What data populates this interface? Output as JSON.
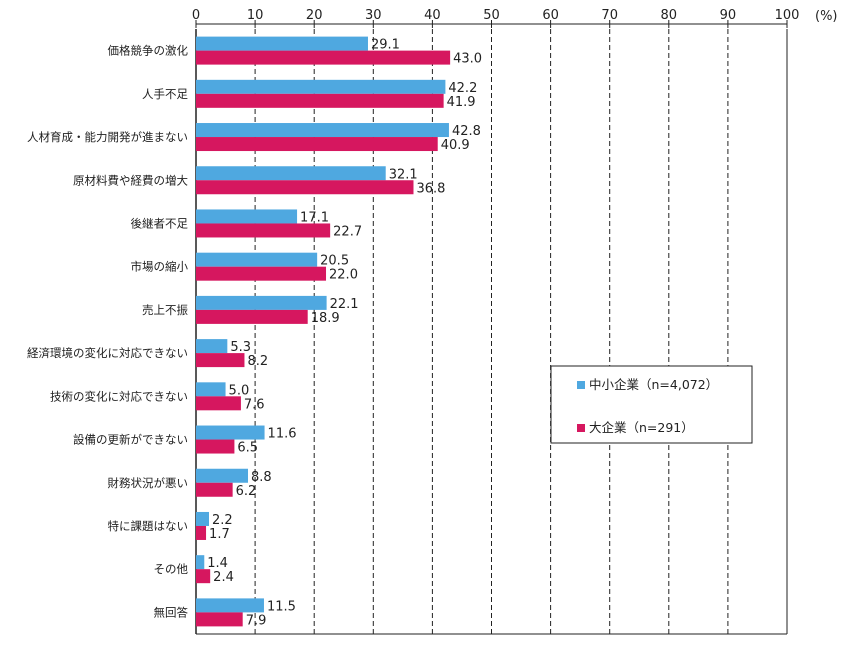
{
  "chart_data": {
    "type": "bar",
    "orientation": "horizontal",
    "unit_label": "(%)",
    "xlim": [
      0,
      100
    ],
    "x_ticks": [
      "0",
      "10",
      "20",
      "30",
      "40",
      "50",
      "60",
      "70",
      "80",
      "90",
      "100"
    ],
    "grid": "vertical dashed",
    "legend_position": "right-middle",
    "categories": [
      "価格競争の激化",
      "人手不足",
      "人材育成・能力開発が進まない",
      "原材料費や経費の増大",
      "後継者不足",
      "市場の縮小",
      "売上不振",
      "経済環境の変化に対応できない",
      "技術の変化に対応できない",
      "設備の更新ができない",
      "財務状況が悪い",
      "特に課題はない",
      "その他",
      "無回答"
    ],
    "series": [
      {
        "name": "中小企業（n=4,072）",
        "color": "#4fa8e0",
        "values": [
          29.1,
          42.2,
          42.8,
          32.1,
          17.1,
          20.5,
          22.1,
          5.3,
          5.0,
          11.6,
          8.8,
          2.2,
          1.4,
          11.5
        ],
        "labels": [
          "29.1",
          "42.2",
          "42.8",
          "32.1",
          "17.1",
          "20.5",
          "22.1",
          "5.3",
          "5.0",
          "11.6",
          "8.8",
          "2.2",
          "1.4",
          "11.5"
        ]
      },
      {
        "name": "大企業（n=291）",
        "color": "#d6175f",
        "values": [
          43.0,
          41.9,
          40.9,
          36.8,
          22.7,
          22.0,
          18.9,
          8.2,
          7.6,
          6.5,
          6.2,
          1.7,
          2.4,
          7.9
        ],
        "labels": [
          "43.0",
          "41.9",
          "40.9",
          "36.8",
          "22.7",
          "22.0",
          "18.9",
          "8.2",
          "7.6",
          "6.5",
          "6.2",
          "1.7",
          "2.4",
          "7.9"
        ]
      }
    ]
  }
}
